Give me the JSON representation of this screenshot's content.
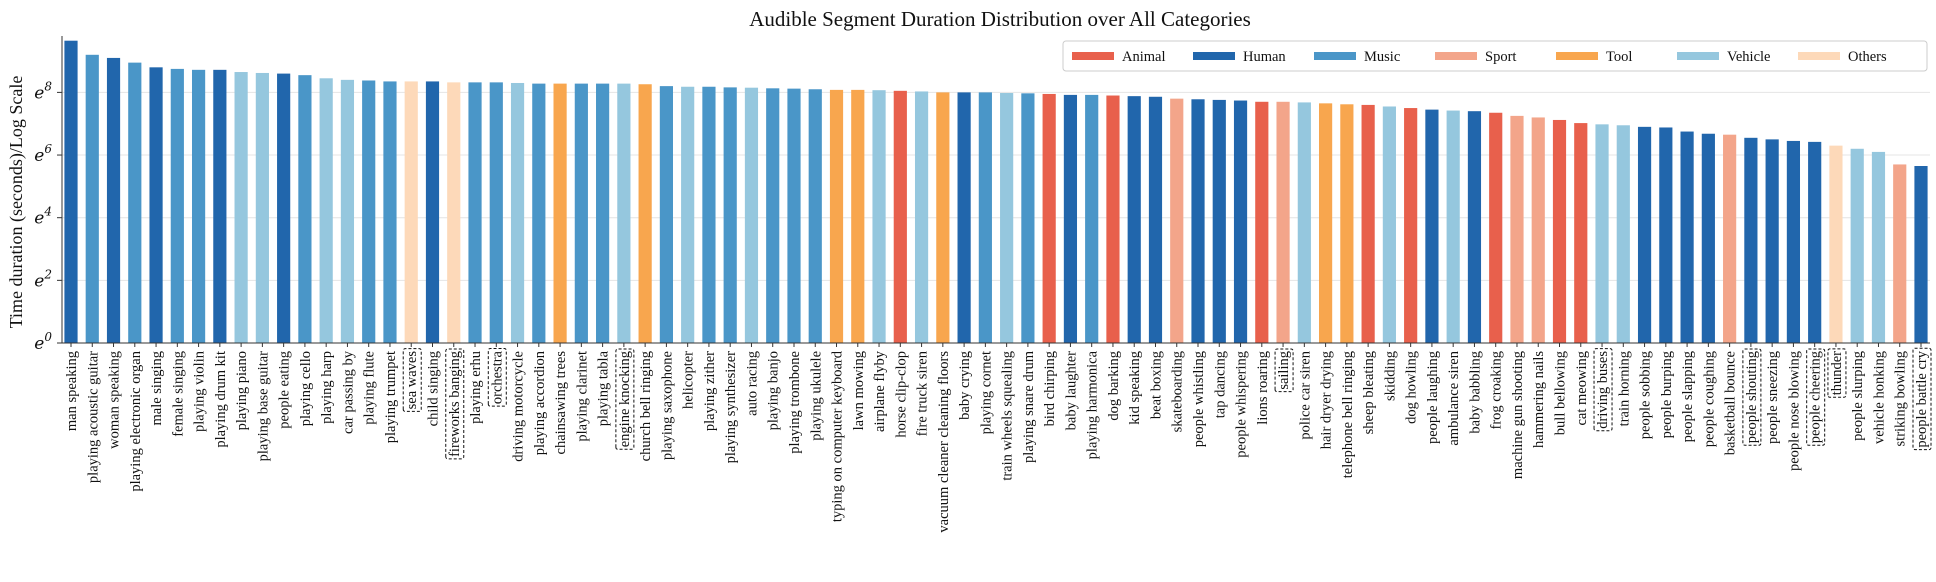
{
  "chart_data": {
    "type": "bar",
    "title": "Audible Segment Duration Distribution over All Categories",
    "ylabel": "Time duration (seconds)/Log Scale",
    "xlabel": "",
    "y_scale": "log (base e)",
    "ylim": [
      0,
      9.8
    ],
    "yticks": [
      {
        "value": 0,
        "base": "e",
        "exp": "0"
      },
      {
        "value": 2,
        "base": "e",
        "exp": "2"
      },
      {
        "value": 4,
        "base": "e",
        "exp": "4"
      },
      {
        "value": 6,
        "base": "e",
        "exp": "6"
      },
      {
        "value": 8,
        "base": "e",
        "exp": "8"
      }
    ],
    "grid": "horizontal",
    "legend_position": "top-right",
    "legend": [
      {
        "name": "Animal",
        "color": "#e8604c"
      },
      {
        "name": "Human",
        "color": "#2166ac"
      },
      {
        "name": "Music",
        "color": "#4a96c8"
      },
      {
        "name": "Sport",
        "color": "#f3a58a"
      },
      {
        "name": "Tool",
        "color": "#f8a64e"
      },
      {
        "name": "Vehicle",
        "color": "#95c7de"
      },
      {
        "name": "Others",
        "color": "#fdd9b9"
      }
    ],
    "bars": [
      {
        "label": "man speaking",
        "value": 9.65,
        "category": "Human",
        "boxed": false
      },
      {
        "label": "playing acoustic guitar",
        "value": 9.2,
        "category": "Music",
        "boxed": false
      },
      {
        "label": "woman speaking",
        "value": 9.1,
        "category": "Human",
        "boxed": false
      },
      {
        "label": "playing electronic organ",
        "value": 8.95,
        "category": "Music",
        "boxed": false
      },
      {
        "label": "male singing",
        "value": 8.8,
        "category": "Human",
        "boxed": false
      },
      {
        "label": "female singing",
        "value": 8.75,
        "category": "Music",
        "boxed": false
      },
      {
        "label": "playing violin",
        "value": 8.72,
        "category": "Music",
        "boxed": false
      },
      {
        "label": "playing drum kit",
        "value": 8.72,
        "category": "Human",
        "boxed": false
      },
      {
        "label": "playing piano",
        "value": 8.65,
        "category": "Vehicle",
        "boxed": false
      },
      {
        "label": "playing base guitar",
        "value": 8.62,
        "category": "Vehicle",
        "boxed": false
      },
      {
        "label": "people eating",
        "value": 8.6,
        "category": "Human",
        "boxed": false
      },
      {
        "label": "playing cello",
        "value": 8.55,
        "category": "Music",
        "boxed": false
      },
      {
        "label": "playing harp",
        "value": 8.45,
        "category": "Vehicle",
        "boxed": false
      },
      {
        "label": "car passing by",
        "value": 8.4,
        "category": "Vehicle",
        "boxed": false
      },
      {
        "label": "playing flute",
        "value": 8.38,
        "category": "Music",
        "boxed": false
      },
      {
        "label": "playing trumpet",
        "value": 8.35,
        "category": "Music",
        "boxed": false
      },
      {
        "label": "sea waves",
        "value": 8.35,
        "category": "Others",
        "boxed": true
      },
      {
        "label": "child singing",
        "value": 8.35,
        "category": "Human",
        "boxed": false
      },
      {
        "label": "fireworks banging",
        "value": 8.32,
        "category": "Others",
        "boxed": true
      },
      {
        "label": "playing erhu",
        "value": 8.32,
        "category": "Music",
        "boxed": false
      },
      {
        "label": "orchestra",
        "value": 8.32,
        "category": "Music",
        "boxed": true
      },
      {
        "label": "driving motorcycle",
        "value": 8.3,
        "category": "Vehicle",
        "boxed": false
      },
      {
        "label": "playing accordion",
        "value": 8.28,
        "category": "Music",
        "boxed": false
      },
      {
        "label": "chainsawing trees",
        "value": 8.28,
        "category": "Tool",
        "boxed": false
      },
      {
        "label": "playing clarinet",
        "value": 8.28,
        "category": "Music",
        "boxed": false
      },
      {
        "label": "playing tabla",
        "value": 8.28,
        "category": "Music",
        "boxed": false
      },
      {
        "label": "engine knocking",
        "value": 8.28,
        "category": "Vehicle",
        "boxed": true
      },
      {
        "label": "church bell ringing",
        "value": 8.26,
        "category": "Tool",
        "boxed": false
      },
      {
        "label": "playing saxophone",
        "value": 8.2,
        "category": "Music",
        "boxed": false
      },
      {
        "label": "helicopter",
        "value": 8.18,
        "category": "Vehicle",
        "boxed": false
      },
      {
        "label": "playing zither",
        "value": 8.18,
        "category": "Music",
        "boxed": false
      },
      {
        "label": "playing synthesizer",
        "value": 8.16,
        "category": "Music",
        "boxed": false
      },
      {
        "label": "auto racing",
        "value": 8.15,
        "category": "Vehicle",
        "boxed": false
      },
      {
        "label": "playing banjo",
        "value": 8.13,
        "category": "Music",
        "boxed": false
      },
      {
        "label": "playing trombone",
        "value": 8.12,
        "category": "Music",
        "boxed": false
      },
      {
        "label": "playing ukulele",
        "value": 8.1,
        "category": "Music",
        "boxed": false
      },
      {
        "label": "typing on computer keyboard",
        "value": 8.08,
        "category": "Tool",
        "boxed": false
      },
      {
        "label": "lawn mowing",
        "value": 8.08,
        "category": "Tool",
        "boxed": false
      },
      {
        "label": "airplane flyby",
        "value": 8.07,
        "category": "Vehicle",
        "boxed": false
      },
      {
        "label": "horse clip-clop",
        "value": 8.05,
        "category": "Animal",
        "boxed": false
      },
      {
        "label": "fire truck siren",
        "value": 8.03,
        "category": "Vehicle",
        "boxed": false
      },
      {
        "label": "vacuum cleaner cleaning floors",
        "value": 8.0,
        "category": "Tool",
        "boxed": false
      },
      {
        "label": "baby crying",
        "value": 8.0,
        "category": "Human",
        "boxed": false
      },
      {
        "label": "playing cornet",
        "value": 8.0,
        "category": "Music",
        "boxed": false
      },
      {
        "label": "train wheels squealing",
        "value": 7.98,
        "category": "Vehicle",
        "boxed": false
      },
      {
        "label": "playing snare drum",
        "value": 7.97,
        "category": "Music",
        "boxed": false
      },
      {
        "label": "bird chirping",
        "value": 7.95,
        "category": "Animal",
        "boxed": false
      },
      {
        "label": "baby laughter",
        "value": 7.92,
        "category": "Human",
        "boxed": false
      },
      {
        "label": "playing harmonica",
        "value": 7.92,
        "category": "Music",
        "boxed": false
      },
      {
        "label": "dog barking",
        "value": 7.9,
        "category": "Animal",
        "boxed": false
      },
      {
        "label": "kid speaking",
        "value": 7.88,
        "category": "Human",
        "boxed": false
      },
      {
        "label": "beat boxing",
        "value": 7.86,
        "category": "Human",
        "boxed": false
      },
      {
        "label": "skateboarding",
        "value": 7.8,
        "category": "Sport",
        "boxed": false
      },
      {
        "label": "people whistling",
        "value": 7.78,
        "category": "Human",
        "boxed": false
      },
      {
        "label": "tap dancing",
        "value": 7.76,
        "category": "Human",
        "boxed": false
      },
      {
        "label": "people whispering",
        "value": 7.74,
        "category": "Human",
        "boxed": false
      },
      {
        "label": "lions roaring",
        "value": 7.7,
        "category": "Animal",
        "boxed": false
      },
      {
        "label": "sailing",
        "value": 7.7,
        "category": "Sport",
        "boxed": true
      },
      {
        "label": "police car siren",
        "value": 7.68,
        "category": "Vehicle",
        "boxed": false
      },
      {
        "label": "hair dryer drying",
        "value": 7.65,
        "category": "Tool",
        "boxed": false
      },
      {
        "label": "telephone bell ringing",
        "value": 7.62,
        "category": "Tool",
        "boxed": false
      },
      {
        "label": "sheep bleating",
        "value": 7.6,
        "category": "Animal",
        "boxed": false
      },
      {
        "label": "skidding",
        "value": 7.55,
        "category": "Vehicle",
        "boxed": false
      },
      {
        "label": "dog howling",
        "value": 7.5,
        "category": "Animal",
        "boxed": false
      },
      {
        "label": "people laughing",
        "value": 7.45,
        "category": "Human",
        "boxed": false
      },
      {
        "label": "ambulance siren",
        "value": 7.42,
        "category": "Vehicle",
        "boxed": false
      },
      {
        "label": "baby babbling",
        "value": 7.4,
        "category": "Human",
        "boxed": false
      },
      {
        "label": "frog croaking",
        "value": 7.35,
        "category": "Animal",
        "boxed": false
      },
      {
        "label": "machine gun shooting",
        "value": 7.25,
        "category": "Sport",
        "boxed": false
      },
      {
        "label": "hammering nails",
        "value": 7.2,
        "category": "Sport",
        "boxed": false
      },
      {
        "label": "bull bellowing",
        "value": 7.12,
        "category": "Animal",
        "boxed": false
      },
      {
        "label": "cat meowing",
        "value": 7.02,
        "category": "Animal",
        "boxed": false
      },
      {
        "label": "driving buses",
        "value": 6.98,
        "category": "Vehicle",
        "boxed": true
      },
      {
        "label": "train horning",
        "value": 6.95,
        "category": "Vehicle",
        "boxed": false
      },
      {
        "label": "people sobbing",
        "value": 6.9,
        "category": "Human",
        "boxed": false
      },
      {
        "label": "people burping",
        "value": 6.88,
        "category": "Human",
        "boxed": false
      },
      {
        "label": "people slapping",
        "value": 6.75,
        "category": "Human",
        "boxed": false
      },
      {
        "label": "people coughing",
        "value": 6.68,
        "category": "Human",
        "boxed": false
      },
      {
        "label": "basketball bounce",
        "value": 6.65,
        "category": "Sport",
        "boxed": false
      },
      {
        "label": "people shouting",
        "value": 6.55,
        "category": "Human",
        "boxed": true
      },
      {
        "label": "people sneezing",
        "value": 6.5,
        "category": "Human",
        "boxed": false
      },
      {
        "label": "people nose blowing",
        "value": 6.45,
        "category": "Human",
        "boxed": false
      },
      {
        "label": "people cheering",
        "value": 6.42,
        "category": "Human",
        "boxed": true
      },
      {
        "label": "thunder",
        "value": 6.3,
        "category": "Others",
        "boxed": true
      },
      {
        "label": "people slurping",
        "value": 6.2,
        "category": "Vehicle",
        "boxed": false
      },
      {
        "label": "vehicle honking",
        "value": 6.1,
        "category": "Vehicle",
        "boxed": false
      },
      {
        "label": "striking bowling",
        "value": 5.7,
        "category": "Sport",
        "boxed": false
      },
      {
        "label": "people battle cry",
        "value": 5.65,
        "category": "Human",
        "boxed": true
      }
    ]
  }
}
